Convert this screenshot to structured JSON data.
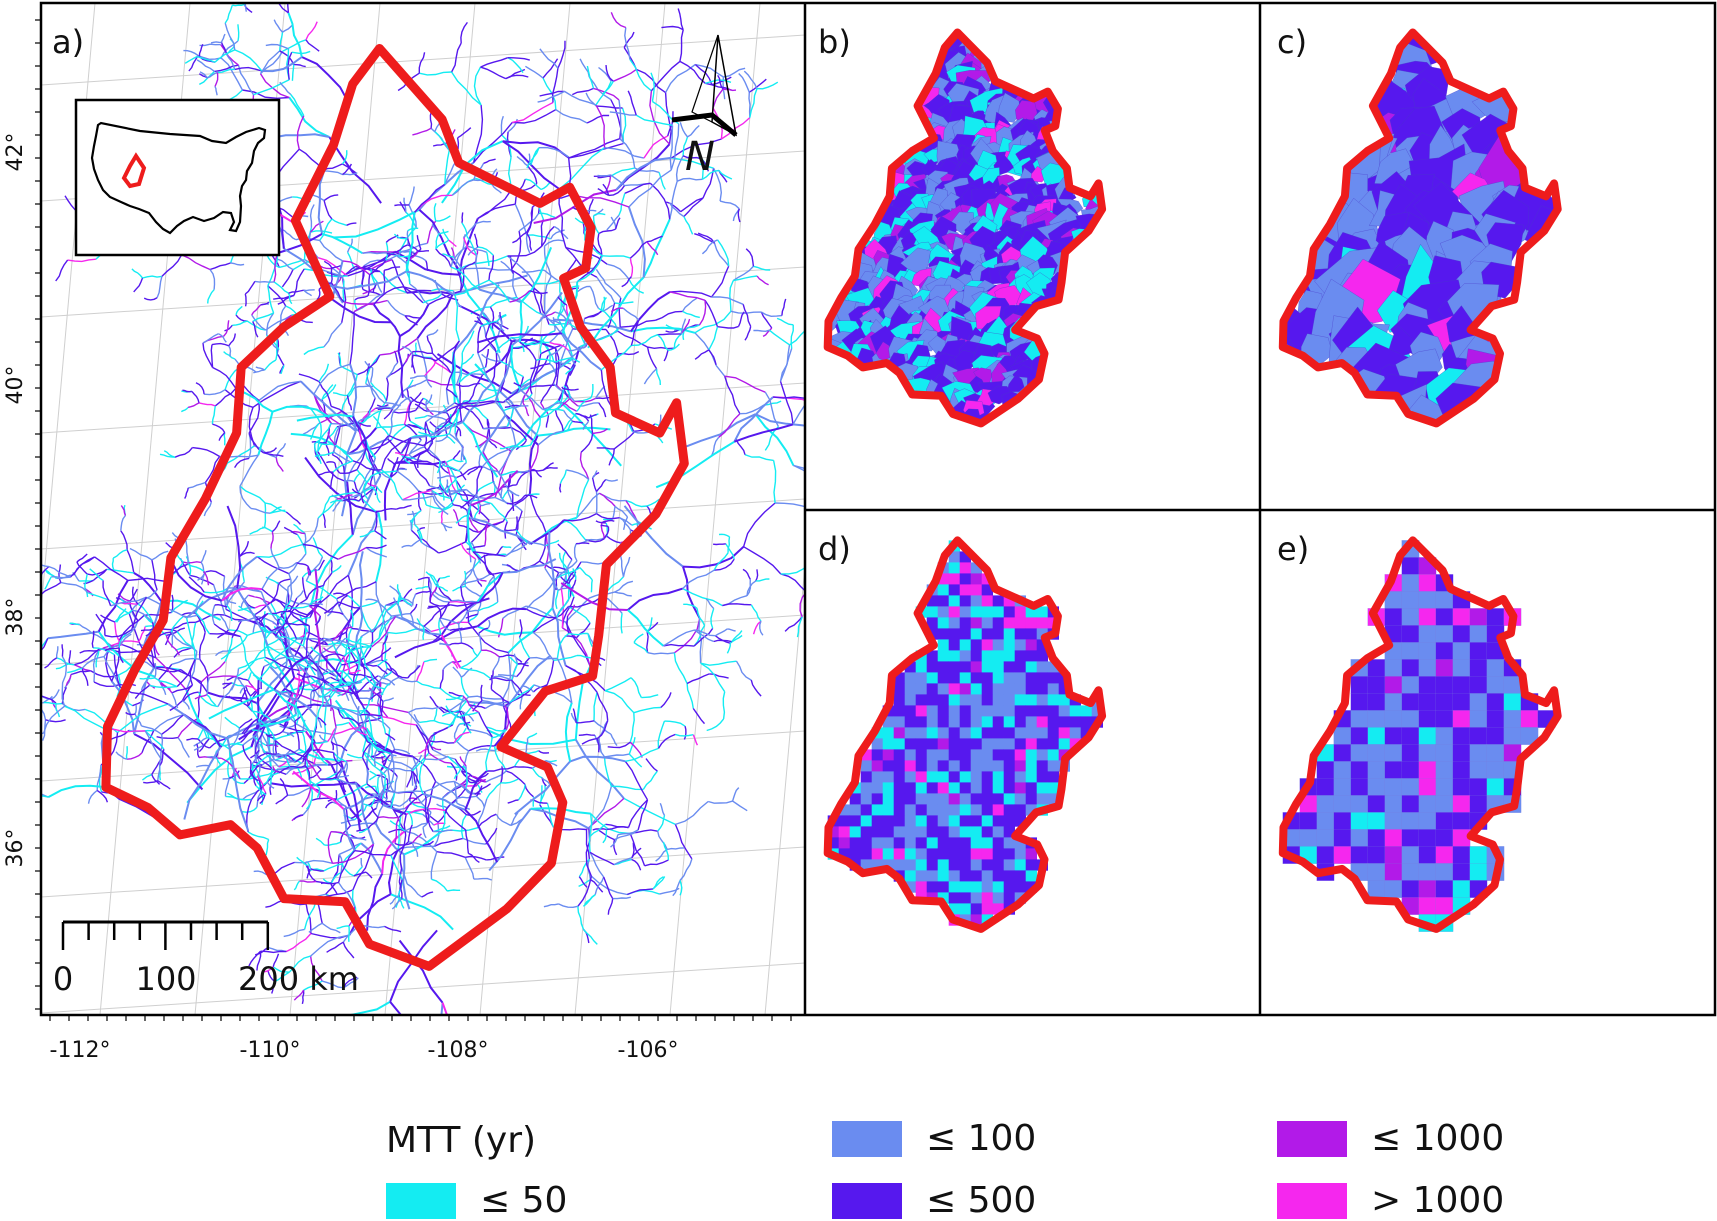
{
  "panels": {
    "a": {
      "label": "a)"
    },
    "b": {
      "label": "b)"
    },
    "c": {
      "label": "c)"
    },
    "d": {
      "label": "d)"
    },
    "e": {
      "label": "e)"
    }
  },
  "north_arrow": {
    "label": "N"
  },
  "scale_bar": {
    "labels": [
      "0",
      "100",
      "200 km"
    ]
  },
  "lat_ticks": [
    "42°",
    "40°",
    "38°",
    "36°"
  ],
  "lon_ticks": [
    "-112°",
    "-110°",
    "-108°",
    "-106°"
  ],
  "legend": {
    "title": "MTT (yr)",
    "items": [
      {
        "label": "≤ 50",
        "color": "#14ecf2"
      },
      {
        "label": "≤ 100",
        "color": "#6a8cf0"
      },
      {
        "label": "≤ 500",
        "color": "#5618ee"
      },
      {
        "label": "≤ 1000",
        "color": "#b21ae8"
      },
      {
        "label": "> 1000",
        "color": "#f527ee"
      }
    ]
  },
  "colors": {
    "boundary": "#ee1c1c",
    "frame": "#000000"
  }
}
